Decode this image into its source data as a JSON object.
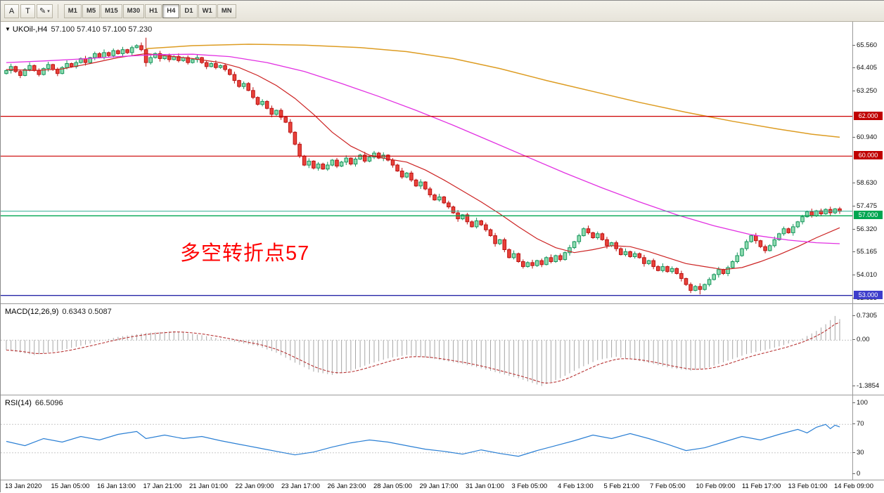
{
  "toolbar": {
    "tool_buttons": [
      {
        "name": "cursor-tool",
        "label": "A"
      },
      {
        "name": "text-tool",
        "label": "T"
      },
      {
        "name": "draw-tool-dropdown",
        "label": "✎",
        "caret": "▾"
      }
    ],
    "timeframes": [
      "M1",
      "M5",
      "M15",
      "M30",
      "H1",
      "H4",
      "D1",
      "W1",
      "MN"
    ],
    "active_timeframe": "H4"
  },
  "main_chart": {
    "collapse_icon": "▼",
    "symbol_period": "UKOil-,H4",
    "ohlc": "57.100 57.410 57.100 57.230",
    "annotation": {
      "text": "多空转折点57",
      "color": "#ff0000"
    }
  },
  "macd": {
    "label": "MACD(12,26,9)",
    "values": "0.6343 0.5087"
  },
  "rsi": {
    "label": "RSI(14)",
    "value": "66.5096"
  },
  "chart_data": [
    {
      "type": "candlestick",
      "title": "UKOil-,H4",
      "ylim": [
        52.6,
        66.75
      ],
      "y_ticks": [
        {
          "label": "65.560",
          "value": 65.56
        },
        {
          "label": "64.405",
          "value": 64.405
        },
        {
          "label": "63.250",
          "value": 63.25
        },
        {
          "label": "60.940",
          "value": 60.94
        },
        {
          "label": "58.630",
          "value": 58.63
        },
        {
          "label": "57.475",
          "value": 57.475
        },
        {
          "label": "56.320",
          "value": 56.32
        },
        {
          "label": "55.165",
          "value": 55.165
        },
        {
          "label": "54.010",
          "value": 54.01
        },
        {
          "label": "52.855",
          "value": 52.855
        }
      ],
      "badges": [
        {
          "label": "62.000",
          "value": 62.0,
          "color": "#c00000"
        },
        {
          "label": "60.000",
          "value": 60.0,
          "color": "#c00000"
        },
        {
          "label": "57.000",
          "value": 57.0,
          "color": "#00a651"
        },
        {
          "label": "53.000",
          "value": 53.0,
          "color": "#3d3dcb"
        }
      ],
      "hlines": [
        {
          "value": 62.0,
          "color": "#cc0000",
          "w": 1.2
        },
        {
          "value": 60.0,
          "color": "#cc0000",
          "w": 1.2
        },
        {
          "value": 57.23,
          "color": "#2fae8f",
          "w": 1
        },
        {
          "value": 57.0,
          "color": "#00a651",
          "w": 1.4
        },
        {
          "value": 53.0,
          "color": "#2828a8",
          "w": 1.4
        }
      ],
      "first_open": 64.15,
      "closes": [
        64.3,
        64.5,
        64.25,
        64.05,
        64.35,
        64.55,
        64.3,
        64.1,
        64.4,
        64.6,
        64.35,
        64.15,
        64.45,
        64.65,
        64.5,
        64.7,
        64.9,
        64.7,
        64.95,
        65.15,
        64.95,
        65.2,
        65.05,
        65.3,
        65.15,
        65.35,
        65.2,
        65.45,
        65.55,
        65.35,
        64.7,
        64.95,
        65.15,
        64.9,
        65.05,
        64.85,
        65.0,
        64.8,
        64.95,
        64.7,
        64.85,
        64.95,
        64.7,
        64.5,
        64.65,
        64.45,
        64.55,
        64.35,
        64.1,
        63.8,
        63.5,
        63.65,
        63.3,
        62.95,
        62.6,
        62.75,
        62.4,
        62.1,
        62.3,
        61.95,
        61.7,
        61.2,
        60.6,
        60.0,
        59.55,
        59.75,
        59.4,
        59.6,
        59.35,
        59.55,
        59.8,
        59.5,
        59.7,
        59.9,
        59.6,
        59.85,
        60.05,
        59.75,
        59.95,
        60.15,
        59.9,
        60.05,
        59.8,
        59.55,
        59.25,
        58.95,
        59.15,
        58.8,
        58.5,
        58.7,
        58.35,
        58.05,
        57.8,
        57.95,
        57.65,
        57.45,
        57.15,
        56.85,
        57.05,
        56.7,
        56.45,
        56.75,
        56.55,
        56.3,
        56.0,
        55.6,
        55.8,
        55.3,
        54.9,
        55.1,
        54.7,
        54.45,
        54.65,
        54.5,
        54.75,
        54.55,
        54.9,
        54.7,
        55.0,
        54.8,
        55.15,
        55.4,
        55.7,
        56.0,
        56.35,
        56.15,
        55.9,
        56.1,
        55.8,
        55.5,
        55.65,
        55.35,
        55.05,
        55.2,
        54.95,
        55.1,
        54.9,
        54.6,
        54.75,
        54.45,
        54.25,
        54.45,
        54.2,
        54.35,
        54.1,
        53.85,
        53.55,
        53.25,
        53.45,
        53.3,
        53.55,
        53.8,
        54.05,
        54.3,
        54.1,
        54.4,
        54.7,
        55.0,
        55.35,
        55.7,
        56.0,
        55.75,
        55.45,
        55.25,
        55.5,
        55.8,
        56.1,
        56.35,
        56.15,
        56.45,
        56.7,
        56.95,
        57.2,
        57.0,
        57.25,
        57.1,
        57.32,
        57.15,
        57.35,
        57.23
      ],
      "wick_up": [
        0.06,
        0.14,
        0.04,
        0.1,
        0.07,
        0.16,
        0.05,
        0.11
      ],
      "wick_dn": [
        0.09,
        0.05,
        0.13,
        0.06,
        0.15,
        0.04,
        0.1,
        0.07
      ],
      "overrides": {
        "30": {
          "high": 65.95,
          "low": 64.5
        },
        "149": {
          "low": 53.05
        }
      },
      "up_color": {
        "fill": "#8fdcb0",
        "stroke": "#15945c"
      },
      "down_color": {
        "fill": "#e8423a",
        "stroke": "#bb1111"
      },
      "ma_lines": [
        {
          "name": "fast-red",
          "color": "#cc2222",
          "width": 1.2,
          "points": [
            [
              0,
              64.35
            ],
            [
              6,
              64.3
            ],
            [
              12,
              64.38
            ],
            [
              18,
              64.65
            ],
            [
              24,
              64.95
            ],
            [
              30,
              65.15
            ],
            [
              34,
              65.05
            ],
            [
              40,
              64.9
            ],
            [
              46,
              64.7
            ],
            [
              50,
              64.45
            ],
            [
              54,
              64.05
            ],
            [
              58,
              63.55
            ],
            [
              62,
              62.9
            ],
            [
              66,
              62.1
            ],
            [
              70,
              61.2
            ],
            [
              74,
              60.5
            ],
            [
              78,
              60.05
            ],
            [
              82,
              59.85
            ],
            [
              86,
              59.7
            ],
            [
              90,
              59.3
            ],
            [
              94,
              58.8
            ],
            [
              98,
              58.25
            ],
            [
              102,
              57.7
            ],
            [
              106,
              57.1
            ],
            [
              110,
              56.45
            ],
            [
              114,
              55.85
            ],
            [
              118,
              55.4
            ],
            [
              122,
              55.15
            ],
            [
              126,
              55.3
            ],
            [
              130,
              55.5
            ],
            [
              134,
              55.45
            ],
            [
              138,
              55.2
            ],
            [
              142,
              54.9
            ],
            [
              146,
              54.6
            ],
            [
              150,
              54.45
            ],
            [
              154,
              54.3
            ],
            [
              158,
              54.4
            ],
            [
              162,
              54.7
            ],
            [
              166,
              55.05
            ],
            [
              170,
              55.45
            ],
            [
              174,
              55.9
            ],
            [
              179,
              56.4
            ]
          ]
        },
        {
          "name": "mid-magenta",
          "color": "#e231e2",
          "width": 1.3,
          "points": [
            [
              0,
              64.7
            ],
            [
              8,
              64.78
            ],
            [
              16,
              64.88
            ],
            [
              24,
              65.0
            ],
            [
              32,
              65.1
            ],
            [
              40,
              65.12
            ],
            [
              48,
              65.0
            ],
            [
              56,
              64.7
            ],
            [
              64,
              64.25
            ],
            [
              72,
              63.65
            ],
            [
              80,
              63.0
            ],
            [
              88,
              62.3
            ],
            [
              96,
              61.55
            ],
            [
              104,
              60.75
            ],
            [
              112,
              59.95
            ],
            [
              120,
              59.15
            ],
            [
              128,
              58.4
            ],
            [
              136,
              57.7
            ],
            [
              144,
              57.05
            ],
            [
              152,
              56.5
            ],
            [
              160,
              56.05
            ],
            [
              168,
              55.78
            ],
            [
              174,
              55.65
            ],
            [
              179,
              55.6
            ]
          ]
        },
        {
          "name": "slow-orange",
          "color": "#dd9c22",
          "width": 1.5,
          "points": [
            [
              30,
              65.4
            ],
            [
              40,
              65.55
            ],
            [
              52,
              65.62
            ],
            [
              64,
              65.58
            ],
            [
              76,
              65.45
            ],
            [
              86,
              65.25
            ],
            [
              96,
              64.9
            ],
            [
              106,
              64.4
            ],
            [
              116,
              63.8
            ],
            [
              126,
              63.25
            ],
            [
              136,
              62.7
            ],
            [
              146,
              62.2
            ],
            [
              156,
              61.75
            ],
            [
              166,
              61.35
            ],
            [
              173,
              61.1
            ],
            [
              179,
              60.95
            ]
          ]
        }
      ],
      "x_labels": [
        "13 Jan 2020",
        "15 Jan 05:00",
        "16 Jan 13:00",
        "17 Jan 21:00",
        "21 Jan 01:00",
        "22 Jan 09:00",
        "23 Jan 17:00",
        "26 Jan 23:00",
        "28 Jan 05:00",
        "29 Jan 17:00",
        "31 Jan 01:00",
        "3 Feb 05:00",
        "4 Feb 13:00",
        "5 Feb 21:00",
        "7 Feb 05:00",
        "10 Feb 09:00",
        "11 Feb 17:00",
        "13 Feb 01:00",
        "14 Feb 09:00"
      ]
    },
    {
      "type": "macd",
      "title": "MACD(12,26,9)",
      "current_values": [
        0.6343,
        0.5087
      ],
      "ylim": [
        -1.667,
        1.089
      ],
      "ticks": [
        {
          "label": "0.7305",
          "value": 0.7305
        },
        {
          "label": "0.00",
          "value": 0
        },
        {
          "label": "-1.3854",
          "value": -1.3854
        }
      ],
      "histogram_color": "#a6a6a6",
      "signal_color": "#b73333",
      "zero_line_color": "#c4c4c4",
      "main_points": [
        [
          0,
          -0.3
        ],
        [
          6,
          -0.45
        ],
        [
          12,
          -0.3
        ],
        [
          18,
          -0.1
        ],
        [
          24,
          0.1
        ],
        [
          30,
          0.22
        ],
        [
          36,
          0.27
        ],
        [
          42,
          0.15
        ],
        [
          48,
          -0.02
        ],
        [
          54,
          -0.18
        ],
        [
          58,
          -0.38
        ],
        [
          62,
          -0.68
        ],
        [
          66,
          -0.95
        ],
        [
          70,
          -1.05
        ],
        [
          74,
          -0.92
        ],
        [
          78,
          -0.72
        ],
        [
          82,
          -0.55
        ],
        [
          86,
          -0.45
        ],
        [
          90,
          -0.52
        ],
        [
          94,
          -0.62
        ],
        [
          98,
          -0.72
        ],
        [
          102,
          -0.85
        ],
        [
          106,
          -1.0
        ],
        [
          110,
          -1.15
        ],
        [
          115,
          -1.3854
        ],
        [
          119,
          -1.15
        ],
        [
          123,
          -0.85
        ],
        [
          127,
          -0.6
        ],
        [
          131,
          -0.5
        ],
        [
          135,
          -0.6
        ],
        [
          139,
          -0.72
        ],
        [
          143,
          -0.85
        ],
        [
          147,
          -0.92
        ],
        [
          151,
          -0.82
        ],
        [
          155,
          -0.62
        ],
        [
          159,
          -0.42
        ],
        [
          163,
          -0.3
        ],
        [
          167,
          -0.15
        ],
        [
          171,
          0.05
        ],
        [
          174,
          0.28
        ],
        [
          176,
          0.48
        ],
        [
          178,
          0.7305
        ],
        [
          179,
          0.6343
        ]
      ]
    },
    {
      "type": "rsi",
      "title": "RSI(14)",
      "current_value": 66.5096,
      "ylim": [
        -9,
        111
      ],
      "ticks": [
        {
          "label": "100",
          "value": 100
        },
        {
          "label": "70",
          "value": 70
        },
        {
          "label": "30",
          "value": 30
        },
        {
          "label": "0",
          "value": 0
        }
      ],
      "levels": [
        70,
        30
      ],
      "line_color": "#2a7fd4",
      "points": [
        [
          0,
          46
        ],
        [
          4,
          40
        ],
        [
          8,
          50
        ],
        [
          12,
          45
        ],
        [
          16,
          53
        ],
        [
          20,
          48
        ],
        [
          24,
          56
        ],
        [
          28,
          60
        ],
        [
          30,
          50
        ],
        [
          34,
          55
        ],
        [
          38,
          50
        ],
        [
          42,
          53
        ],
        [
          46,
          47
        ],
        [
          50,
          42
        ],
        [
          54,
          37
        ],
        [
          58,
          32
        ],
        [
          62,
          27
        ],
        [
          66,
          31
        ],
        [
          70,
          38
        ],
        [
          74,
          44
        ],
        [
          78,
          48
        ],
        [
          82,
          45
        ],
        [
          86,
          40
        ],
        [
          90,
          35
        ],
        [
          94,
          32
        ],
        [
          98,
          28
        ],
        [
          102,
          34
        ],
        [
          106,
          29
        ],
        [
          110,
          25
        ],
        [
          114,
          33
        ],
        [
          118,
          40
        ],
        [
          122,
          47
        ],
        [
          126,
          55
        ],
        [
          130,
          50
        ],
        [
          134,
          57
        ],
        [
          138,
          50
        ],
        [
          142,
          42
        ],
        [
          146,
          33
        ],
        [
          150,
          37
        ],
        [
          154,
          45
        ],
        [
          158,
          53
        ],
        [
          162,
          48
        ],
        [
          166,
          56
        ],
        [
          170,
          63
        ],
        [
          172,
          58
        ],
        [
          174,
          66
        ],
        [
          176,
          70
        ],
        [
          177,
          64
        ],
        [
          178,
          69
        ],
        [
          179,
          66.5
        ]
      ]
    }
  ]
}
